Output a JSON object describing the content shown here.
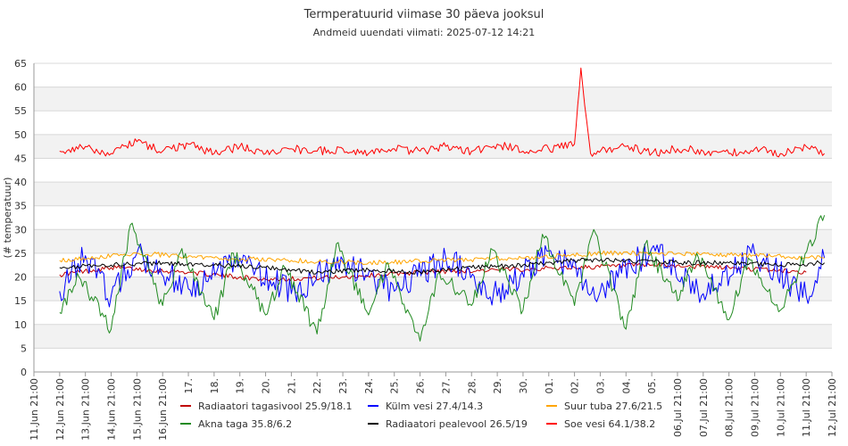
{
  "chart_data": {
    "type": "line",
    "title": "Termperatuurid viimase 30 päeva jooksul",
    "subtitle": "Andmeid uuendati viimati: 2025-07-12 14:21",
    "ylabel": "(# temperatuur)",
    "ylim": [
      0,
      65
    ],
    "yticks": [
      0,
      5,
      10,
      15,
      20,
      25,
      30,
      35,
      40,
      45,
      50,
      55,
      60,
      65
    ],
    "xlim": [
      "2025-06-11 21:00",
      "2025-07-12 21:00"
    ],
    "xticks": [
      "11.Jun 21:00",
      "12.Jun 21:00",
      "13.Jun 21:00",
      "14.Jun 21:00",
      "15.Jun 21:00",
      "16.Jun 21:00",
      "17.",
      "18.",
      "19.",
      "20.",
      "21.",
      "22.",
      "23.",
      "24.",
      "25.",
      "26.",
      "27.",
      "28.",
      "29.",
      "30.",
      "01.",
      "02.",
      "03.",
      "04.",
      "05.",
      "06.Jul 21:00",
      "07.Jul 21:00",
      "08.Jul 21:00",
      "09.Jul 21:00",
      "10.Jul 21:00",
      "11.Jul 21:00",
      "12.Jul 21:00"
    ],
    "grid": "horizontal bands",
    "legend_position": "bottom",
    "series": [
      {
        "name": "Radiaatori tagasivool 25.9/18.1",
        "color": "#c00000",
        "x": [
          "2025-06-12 21:00",
          "2025-06-14 21:00",
          "2025-06-17 21:00",
          "2025-06-20 21:00",
          "2025-06-23 21:00",
          "2025-06-26 21:00",
          "2025-06-29 21:00",
          "2025-07-02 21:00",
          "2025-07-05 21:00",
          "2025-07-08 21:00",
          "2025-07-11 21:00"
        ],
        "y": [
          20.5,
          22.0,
          21.0,
          19.5,
          20.0,
          21.0,
          21.5,
          22.0,
          22.5,
          22.0,
          21.0
        ]
      },
      {
        "name": "Külm vesi 27.4/14.3",
        "color": "#0000ff",
        "x": [
          "2025-06-12 21:00",
          "2025-06-13 21:00",
          "2025-06-14 21:00",
          "2025-06-15 21:00",
          "2025-06-17 21:00",
          "2025-06-19 21:00",
          "2025-06-21 21:00",
          "2025-06-23 21:00",
          "2025-06-25 21:00",
          "2025-06-27 21:00",
          "2025-06-29 21:00",
          "2025-07-01 21:00",
          "2025-07-03 21:00",
          "2025-07-05 21:00",
          "2025-07-07 21:00",
          "2025-07-09 21:00",
          "2025-07-11 21:00",
          "2025-07-12 14:00"
        ],
        "y": [
          17.0,
          24.5,
          16.0,
          25.0,
          17.5,
          24.0,
          16.5,
          23.5,
          17.0,
          24.0,
          16.0,
          25.5,
          17.0,
          26.0,
          16.5,
          25.0,
          16.0,
          24.0
        ]
      },
      {
        "name": "Suur tuba 27.6/21.5",
        "color": "#ffa500",
        "x": [
          "2025-06-12 21:00",
          "2025-06-15 21:00",
          "2025-06-18 21:00",
          "2025-06-21 21:00",
          "2025-06-24 21:00",
          "2025-06-27 21:00",
          "2025-06-30 21:00",
          "2025-07-03 21:00",
          "2025-07-06 21:00",
          "2025-07-09 21:00",
          "2025-07-12 14:00"
        ],
        "y": [
          23.5,
          25.0,
          24.0,
          23.5,
          23.0,
          23.5,
          24.0,
          25.0,
          25.0,
          24.5,
          24.0
        ]
      },
      {
        "name": "Akna taga 35.8/6.2",
        "color": "#228b22",
        "x": [
          "2025-06-12 21:00",
          "2025-06-13 15:00",
          "2025-06-14 21:00",
          "2025-06-15 15:00",
          "2025-06-16 21:00",
          "2025-06-17 15:00",
          "2025-06-18 21:00",
          "2025-06-19 15:00",
          "2025-06-20 21:00",
          "2025-06-21 15:00",
          "2025-06-22 21:00",
          "2025-06-23 15:00",
          "2025-06-24 21:00",
          "2025-06-25 15:00",
          "2025-06-26 21:00",
          "2025-06-27 15:00",
          "2025-06-28 21:00",
          "2025-06-29 15:00",
          "2025-06-30 21:00",
          "2025-07-01 15:00",
          "2025-07-02 21:00",
          "2025-07-03 15:00",
          "2025-07-04 21:00",
          "2025-07-05 15:00",
          "2025-07-06 21:00",
          "2025-07-07 15:00",
          "2025-07-08 21:00",
          "2025-07-09 15:00",
          "2025-07-10 21:00",
          "2025-07-11 15:00",
          "2025-07-12 14:00"
        ],
        "y": [
          12.5,
          20.0,
          9.0,
          31.0,
          14.0,
          26.0,
          11.0,
          25.0,
          12.0,
          22.0,
          8.0,
          27.0,
          12.0,
          23.0,
          6.5,
          21.0,
          14.0,
          26.0,
          13.0,
          29.0,
          14.0,
          30.0,
          9.0,
          27.0,
          15.0,
          25.0,
          11.0,
          24.0,
          13.0,
          22.0,
          33.0
        ]
      },
      {
        "name": "Radiaatori pealevool 26.5/19",
        "color": "#000000",
        "x": [
          "2025-06-12 21:00",
          "2025-06-14 21:00",
          "2025-06-16 21:00",
          "2025-06-18 21:00",
          "2025-06-20 21:00",
          "2025-06-22 21:00",
          "2025-06-24 21:00",
          "2025-06-26 21:00",
          "2025-06-28 21:00",
          "2025-06-30 21:00",
          "2025-07-02 21:00",
          "2025-07-04 21:00",
          "2025-07-06 21:00",
          "2025-07-08 21:00",
          "2025-07-10 21:00",
          "2025-07-12 14:00"
        ],
        "y": [
          22.0,
          22.5,
          23.0,
          22.5,
          22.0,
          21.0,
          21.5,
          21.0,
          22.0,
          22.5,
          23.5,
          23.5,
          23.0,
          23.0,
          22.5,
          23.0
        ]
      },
      {
        "name": "Soe vesi 64.1/38.2",
        "color": "#ff0000",
        "x": [
          "2025-06-12 21:00",
          "2025-06-13 21:00",
          "2025-06-14 21:00",
          "2025-06-15 21:00",
          "2025-06-16 21:00",
          "2025-06-17 21:00",
          "2025-06-18 21:00",
          "2025-06-19 21:00",
          "2025-06-20 21:00",
          "2025-06-21 21:00",
          "2025-06-22 21:00",
          "2025-06-23 21:00",
          "2025-06-24 21:00",
          "2025-06-25 21:00",
          "2025-06-26 21:00",
          "2025-06-27 21:00",
          "2025-06-28 21:00",
          "2025-06-29 21:00",
          "2025-06-30 21:00",
          "2025-07-01 21:00",
          "2025-07-02 21:00",
          "2025-07-03 03:00",
          "2025-07-03 12:00",
          "2025-07-04 21:00",
          "2025-07-05 21:00",
          "2025-07-06 21:00",
          "2025-07-07 21:00",
          "2025-07-08 21:00",
          "2025-07-09 21:00",
          "2025-07-10 21:00",
          "2025-07-11 21:00",
          "2025-07-12 14:00"
        ],
        "y": [
          46.5,
          47.5,
          46.0,
          48.5,
          46.5,
          48.0,
          46.0,
          47.5,
          46.0,
          47.0,
          46.5,
          47.0,
          46.0,
          47.0,
          46.5,
          47.5,
          46.5,
          48.0,
          46.5,
          47.0,
          48.0,
          64.0,
          46.0,
          47.5,
          46.0,
          47.0,
          46.5,
          46.0,
          47.0,
          46.0,
          47.5,
          46.0
        ]
      }
    ]
  }
}
